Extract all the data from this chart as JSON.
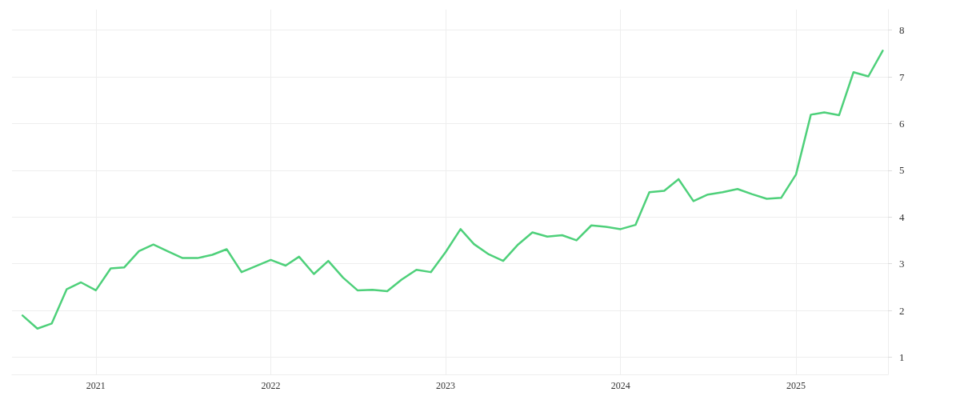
{
  "chart_data": {
    "type": "line",
    "x": [
      "2020-08",
      "2020-09",
      "2020-10",
      "2020-11",
      "2020-12",
      "2021-01",
      "2021-02",
      "2021-03",
      "2021-04",
      "2021-05",
      "2021-06",
      "2021-07",
      "2021-08",
      "2021-09",
      "2021-10",
      "2021-11",
      "2021-12",
      "2022-01",
      "2022-02",
      "2022-03",
      "2022-04",
      "2022-05",
      "2022-06",
      "2022-07",
      "2022-08",
      "2022-09",
      "2022-10",
      "2022-11",
      "2022-12",
      "2023-01",
      "2023-02",
      "2023-03",
      "2023-04",
      "2023-05",
      "2023-06",
      "2023-07",
      "2023-08",
      "2023-09",
      "2023-10",
      "2023-11",
      "2023-12",
      "2024-01",
      "2024-02",
      "2024-03",
      "2024-04",
      "2024-05",
      "2024-06",
      "2024-07",
      "2024-08",
      "2024-09",
      "2024-10",
      "2024-11",
      "2024-12",
      "2025-01",
      "2025-02",
      "2025-03",
      "2025-04",
      "2025-05",
      "2025-06",
      "2025-07"
    ],
    "series": [
      {
        "color": "#4ed07a",
        "values": [
          1.89,
          1.61,
          1.72,
          2.45,
          2.6,
          2.43,
          2.9,
          2.92,
          3.27,
          3.41,
          3.26,
          3.12,
          3.12,
          3.19,
          3.31,
          2.82,
          2.95,
          3.08,
          2.96,
          3.15,
          2.78,
          3.06,
          2.7,
          2.43,
          2.44,
          2.41,
          2.66,
          2.87,
          2.82,
          3.25,
          3.74,
          3.42,
          3.2,
          3.06,
          3.41,
          3.67,
          3.58,
          3.61,
          3.5,
          3.82,
          3.79,
          3.74,
          3.83,
          4.53,
          4.56,
          4.81,
          4.34,
          4.48,
          4.53,
          4.6,
          4.49,
          4.39,
          4.41,
          4.91,
          6.19,
          6.24,
          6.18,
          7.1,
          7.01,
          7.56
        ]
      }
    ],
    "xlim": [
      "2020-07-10",
      "2025-07-12"
    ],
    "xticks": [
      "2021",
      "2022",
      "2023",
      "2024",
      "2025"
    ],
    "ylim": [
      0.63,
      8.44
    ],
    "yticks": [
      1,
      2,
      3,
      4,
      5,
      6,
      7,
      8
    ],
    "grid": true,
    "marker": "none",
    "line_style": "solid"
  }
}
